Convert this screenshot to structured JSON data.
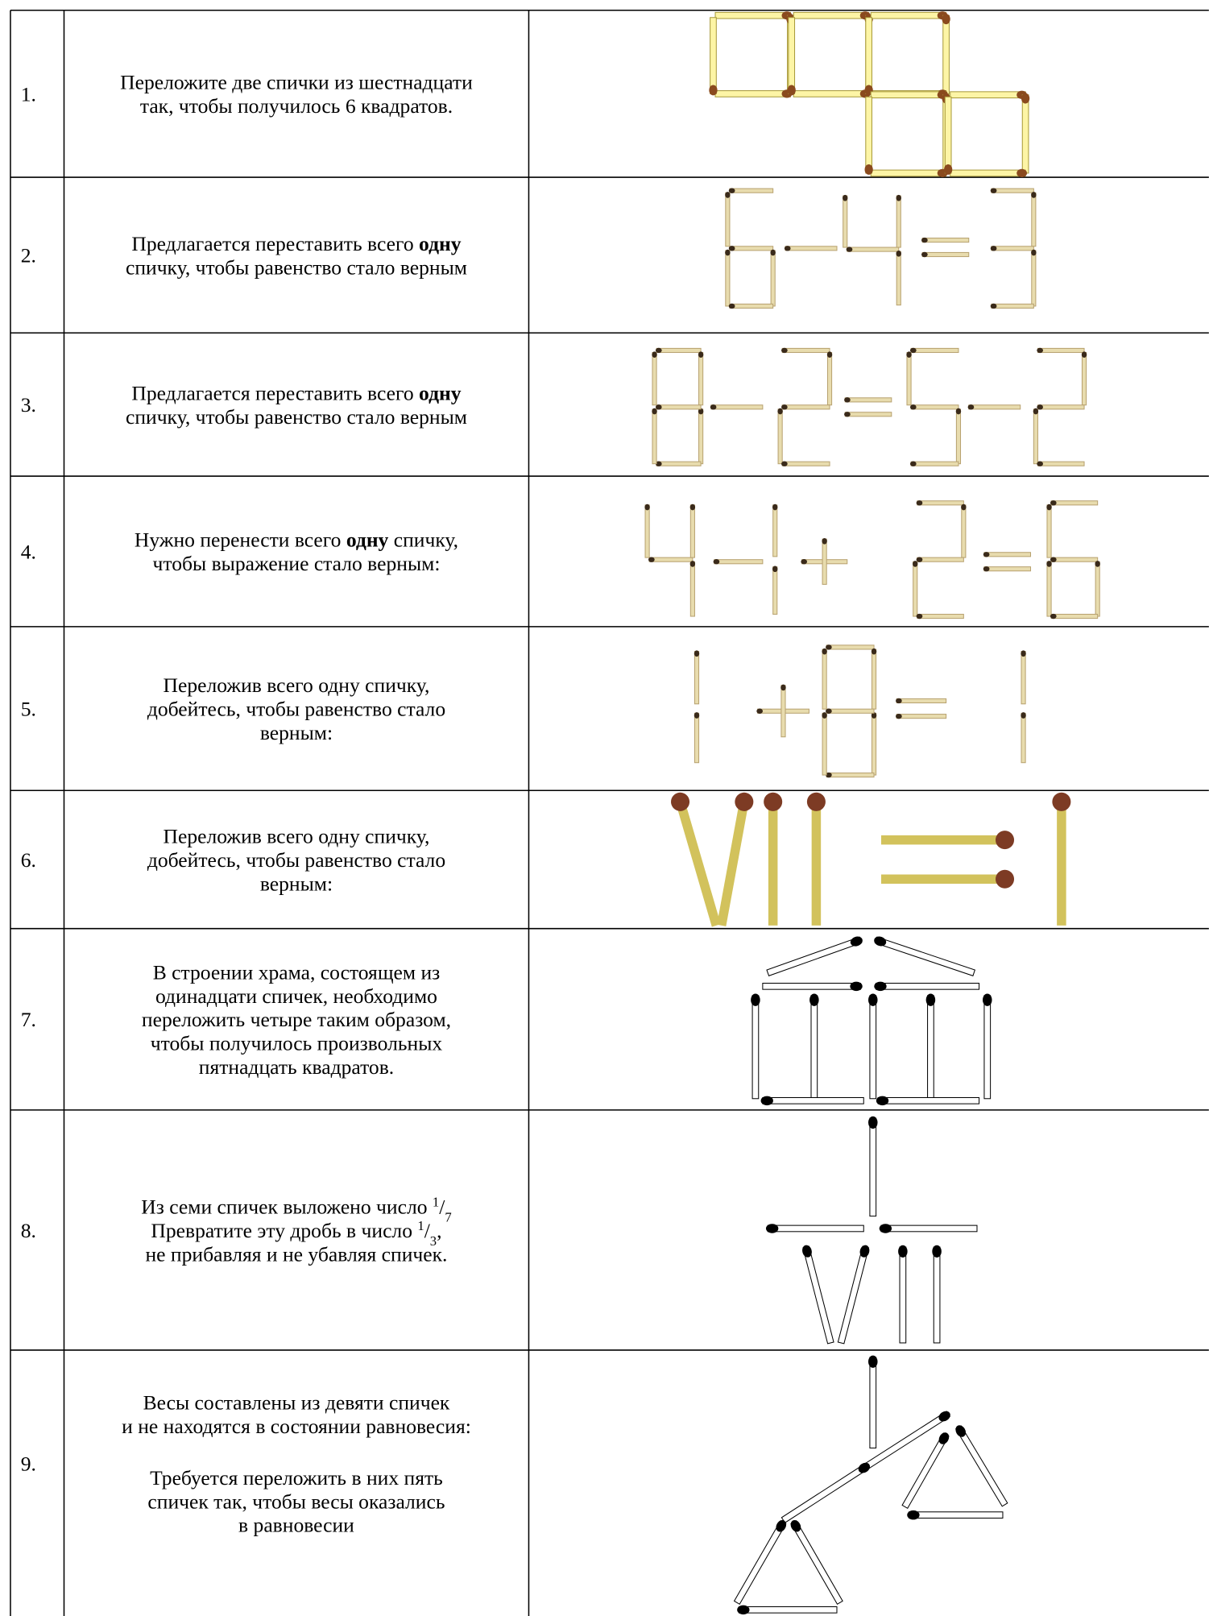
{
  "rows": [
    {
      "number": "1.",
      "paragraphs": [
        [
          [
            "Переложите две спички из шестнадцати"
          ],
          [
            "так, чтобы получилось 6 квадратов."
          ]
        ]
      ]
    },
    {
      "number": "2.",
      "paragraphs": [
        [
          [
            "Предлагается переставить всего ",
            {
              "b": "одну"
            }
          ],
          [
            "спичку, чтобы равенство стало верным"
          ]
        ]
      ]
    },
    {
      "number": "3.",
      "paragraphs": [
        [
          [
            "Предлагается переставить всего ",
            {
              "b": "одну"
            }
          ],
          [
            "спичку, чтобы равенство стало верным"
          ]
        ]
      ]
    },
    {
      "number": "4.",
      "paragraphs": [
        [
          [
            "Нужно перенести всего ",
            {
              "b": "одну"
            },
            " спичку,"
          ],
          [
            "чтобы выражение стало верным:"
          ]
        ]
      ]
    },
    {
      "number": "5.",
      "paragraphs": [
        [
          [
            "Переложив всего одну спичку,"
          ],
          [
            "добейтесь, чтобы равенство стало"
          ],
          [
            "верным:"
          ]
        ]
      ]
    },
    {
      "number": "6.",
      "paragraphs": [
        [
          [
            "Переложив всего одну спичку,"
          ],
          [
            "добейтесь, чтобы равенство стало"
          ],
          [
            "верным:"
          ]
        ]
      ]
    },
    {
      "number": "7.",
      "paragraphs": [
        [
          [
            "В строении храма, состоящем из"
          ],
          [
            "одинадцати спичек, необходимо"
          ],
          [
            "переложить четыре таким образом,"
          ],
          [
            "чтобы получилось произвольных"
          ],
          [
            "пятнадцать квадратов."
          ]
        ]
      ]
    },
    {
      "number": "8.",
      "paragraphs": [
        [
          [
            "Из семи спичек выложено число ",
            {
              "sup": "1"
            },
            "/",
            {
              "sub": "7"
            }
          ],
          [
            "Превратите эту дробь в число ",
            {
              "sup": "1"
            },
            "/",
            {
              "sub": "3"
            },
            ","
          ],
          [
            "не прибавляя и не убавляя спичек."
          ]
        ]
      ]
    },
    {
      "number": "9.",
      "paragraphs": [
        [
          [
            "Весы составлены из девяти спичек"
          ],
          [
            "и не находятся в состоянии равновесия:"
          ]
        ],
        [
          [
            "Требуется переложить в них пять"
          ],
          [
            "спичек так, чтобы весы оказались"
          ],
          [
            "в равновесии"
          ]
        ]
      ]
    }
  ]
}
